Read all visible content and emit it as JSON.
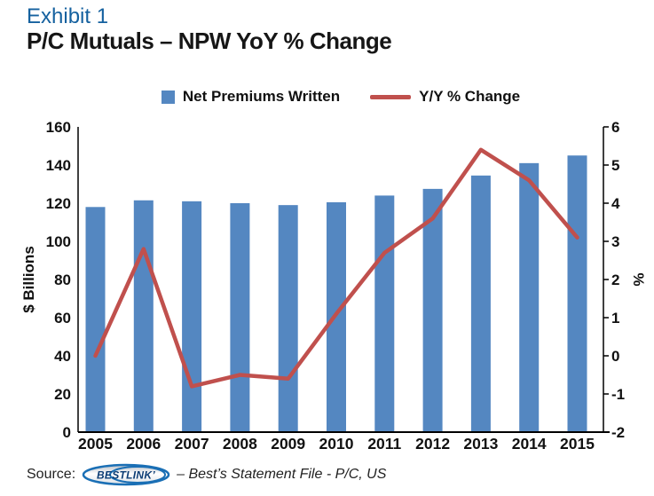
{
  "header": {
    "exhibit": "Exhibit 1",
    "title": "P/C Mutuals – NPW YoY % Change"
  },
  "legend": {
    "items": [
      {
        "label": "Net Premiums Written",
        "swatch": "square"
      },
      {
        "label": "Y/Y % Change",
        "swatch": "line"
      }
    ]
  },
  "source": {
    "prefix": "Source:",
    "logo_text": "BESTLINK’",
    "text": "– Best’s Statement File - P/C, US"
  },
  "colors": {
    "bar": "#5487c1",
    "line": "#c0504d",
    "exhibit_blue": "#15619f",
    "axis": "#000000",
    "logo_blue": "#1a6fb5",
    "logo_text_blue": "#0d3d75"
  },
  "chart_data": {
    "type": "combo",
    "title": "P/C Mutuals – NPW YoY % Change",
    "categories": [
      "2005",
      "2006",
      "2007",
      "2008",
      "2009",
      "2010",
      "2011",
      "2012",
      "2013",
      "2014",
      "2015"
    ],
    "series": [
      {
        "name": "Net Premiums Written",
        "type": "bar",
        "axis": "left",
        "values": [
          118,
          121.5,
          121,
          120,
          119,
          120.5,
          124,
          127.5,
          134.5,
          141,
          145
        ]
      },
      {
        "name": "Y/Y % Change",
        "type": "line",
        "axis": "right",
        "values": [
          0.0,
          2.8,
          -0.8,
          -0.5,
          -0.6,
          1.1,
          2.7,
          3.6,
          5.4,
          4.6,
          3.1
        ]
      }
    ],
    "left_axis": {
      "label": "$ Billions",
      "min": 0,
      "max": 160,
      "ticks": [
        0,
        20,
        40,
        60,
        80,
        100,
        120,
        140,
        160
      ]
    },
    "right_axis": {
      "label": "%",
      "min": -2,
      "max": 6,
      "ticks": [
        -2,
        -1,
        0,
        1,
        2,
        3,
        4,
        5,
        6
      ]
    },
    "grid": false,
    "legend_position": "top"
  }
}
